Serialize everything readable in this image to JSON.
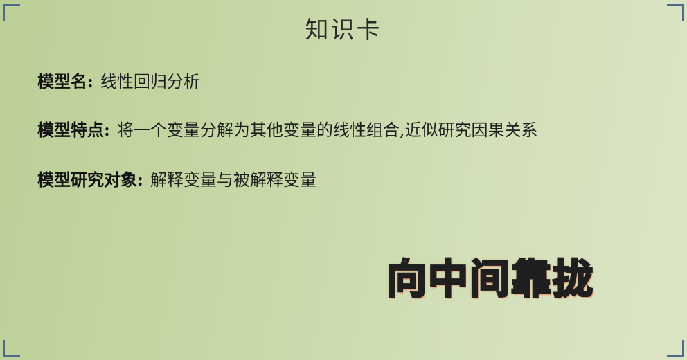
{
  "card": {
    "title": "知识卡",
    "rows": [
      {
        "label": "模型名:",
        "value": "线性回归分析"
      },
      {
        "label": "模型特点:",
        "value": "将一个变量分解为其他变量的线性组合,近似研究因果关系"
      },
      {
        "label": "模型研究对象:",
        "value": "解释变量与被解释变量"
      }
    ],
    "stamp_text": "向中间靠拢"
  },
  "colors": {
    "background_left": "#bccf96",
    "background_right": "#dbe5c6",
    "corner": "#4d6a8a",
    "stamp_fill": "#fff3c4",
    "stamp_glow": "#e9a27b"
  }
}
